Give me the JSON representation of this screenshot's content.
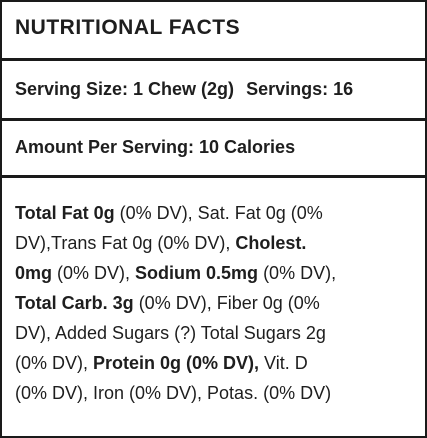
{
  "label": {
    "title": "NUTRITIONAL FACTS",
    "serving_size": "Serving Size: 1 Chew (2g)",
    "servings": "Servings: 16",
    "amount_per_serving": "Amount Per Serving: 10 Calories",
    "facts_lines": [
      [
        {
          "text": "Total Fat 0g",
          "bold": true
        },
        {
          "text": " (0% DV), Sat. Fat 0g (0%",
          "bold": false
        }
      ],
      [
        {
          "text": "DV),Trans Fat 0g (0% DV), ",
          "bold": false
        },
        {
          "text": "Cholest.",
          "bold": true
        }
      ],
      [
        {
          "text": "0mg",
          "bold": true
        },
        {
          "text": " (0% DV), ",
          "bold": false
        },
        {
          "text": "Sodium 0.5mg",
          "bold": true
        },
        {
          "text": " (0% DV),",
          "bold": false
        }
      ],
      [
        {
          "text": "Total Carb. 3g",
          "bold": true
        },
        {
          "text": " (0% DV), Fiber 0g (0%",
          "bold": false
        }
      ],
      [
        {
          "text": "DV), Added Sugars (?) Total Sugars 2g",
          "bold": false
        }
      ],
      [
        {
          "text": "(0% DV), ",
          "bold": false
        },
        {
          "text": "Protein 0g (0% DV),",
          "bold": true
        },
        {
          "text": " Vit. D",
          "bold": false
        }
      ],
      [
        {
          "text": "(0% DV), Iron (0% DV), Potas. (0% DV)",
          "bold": false
        }
      ]
    ]
  }
}
